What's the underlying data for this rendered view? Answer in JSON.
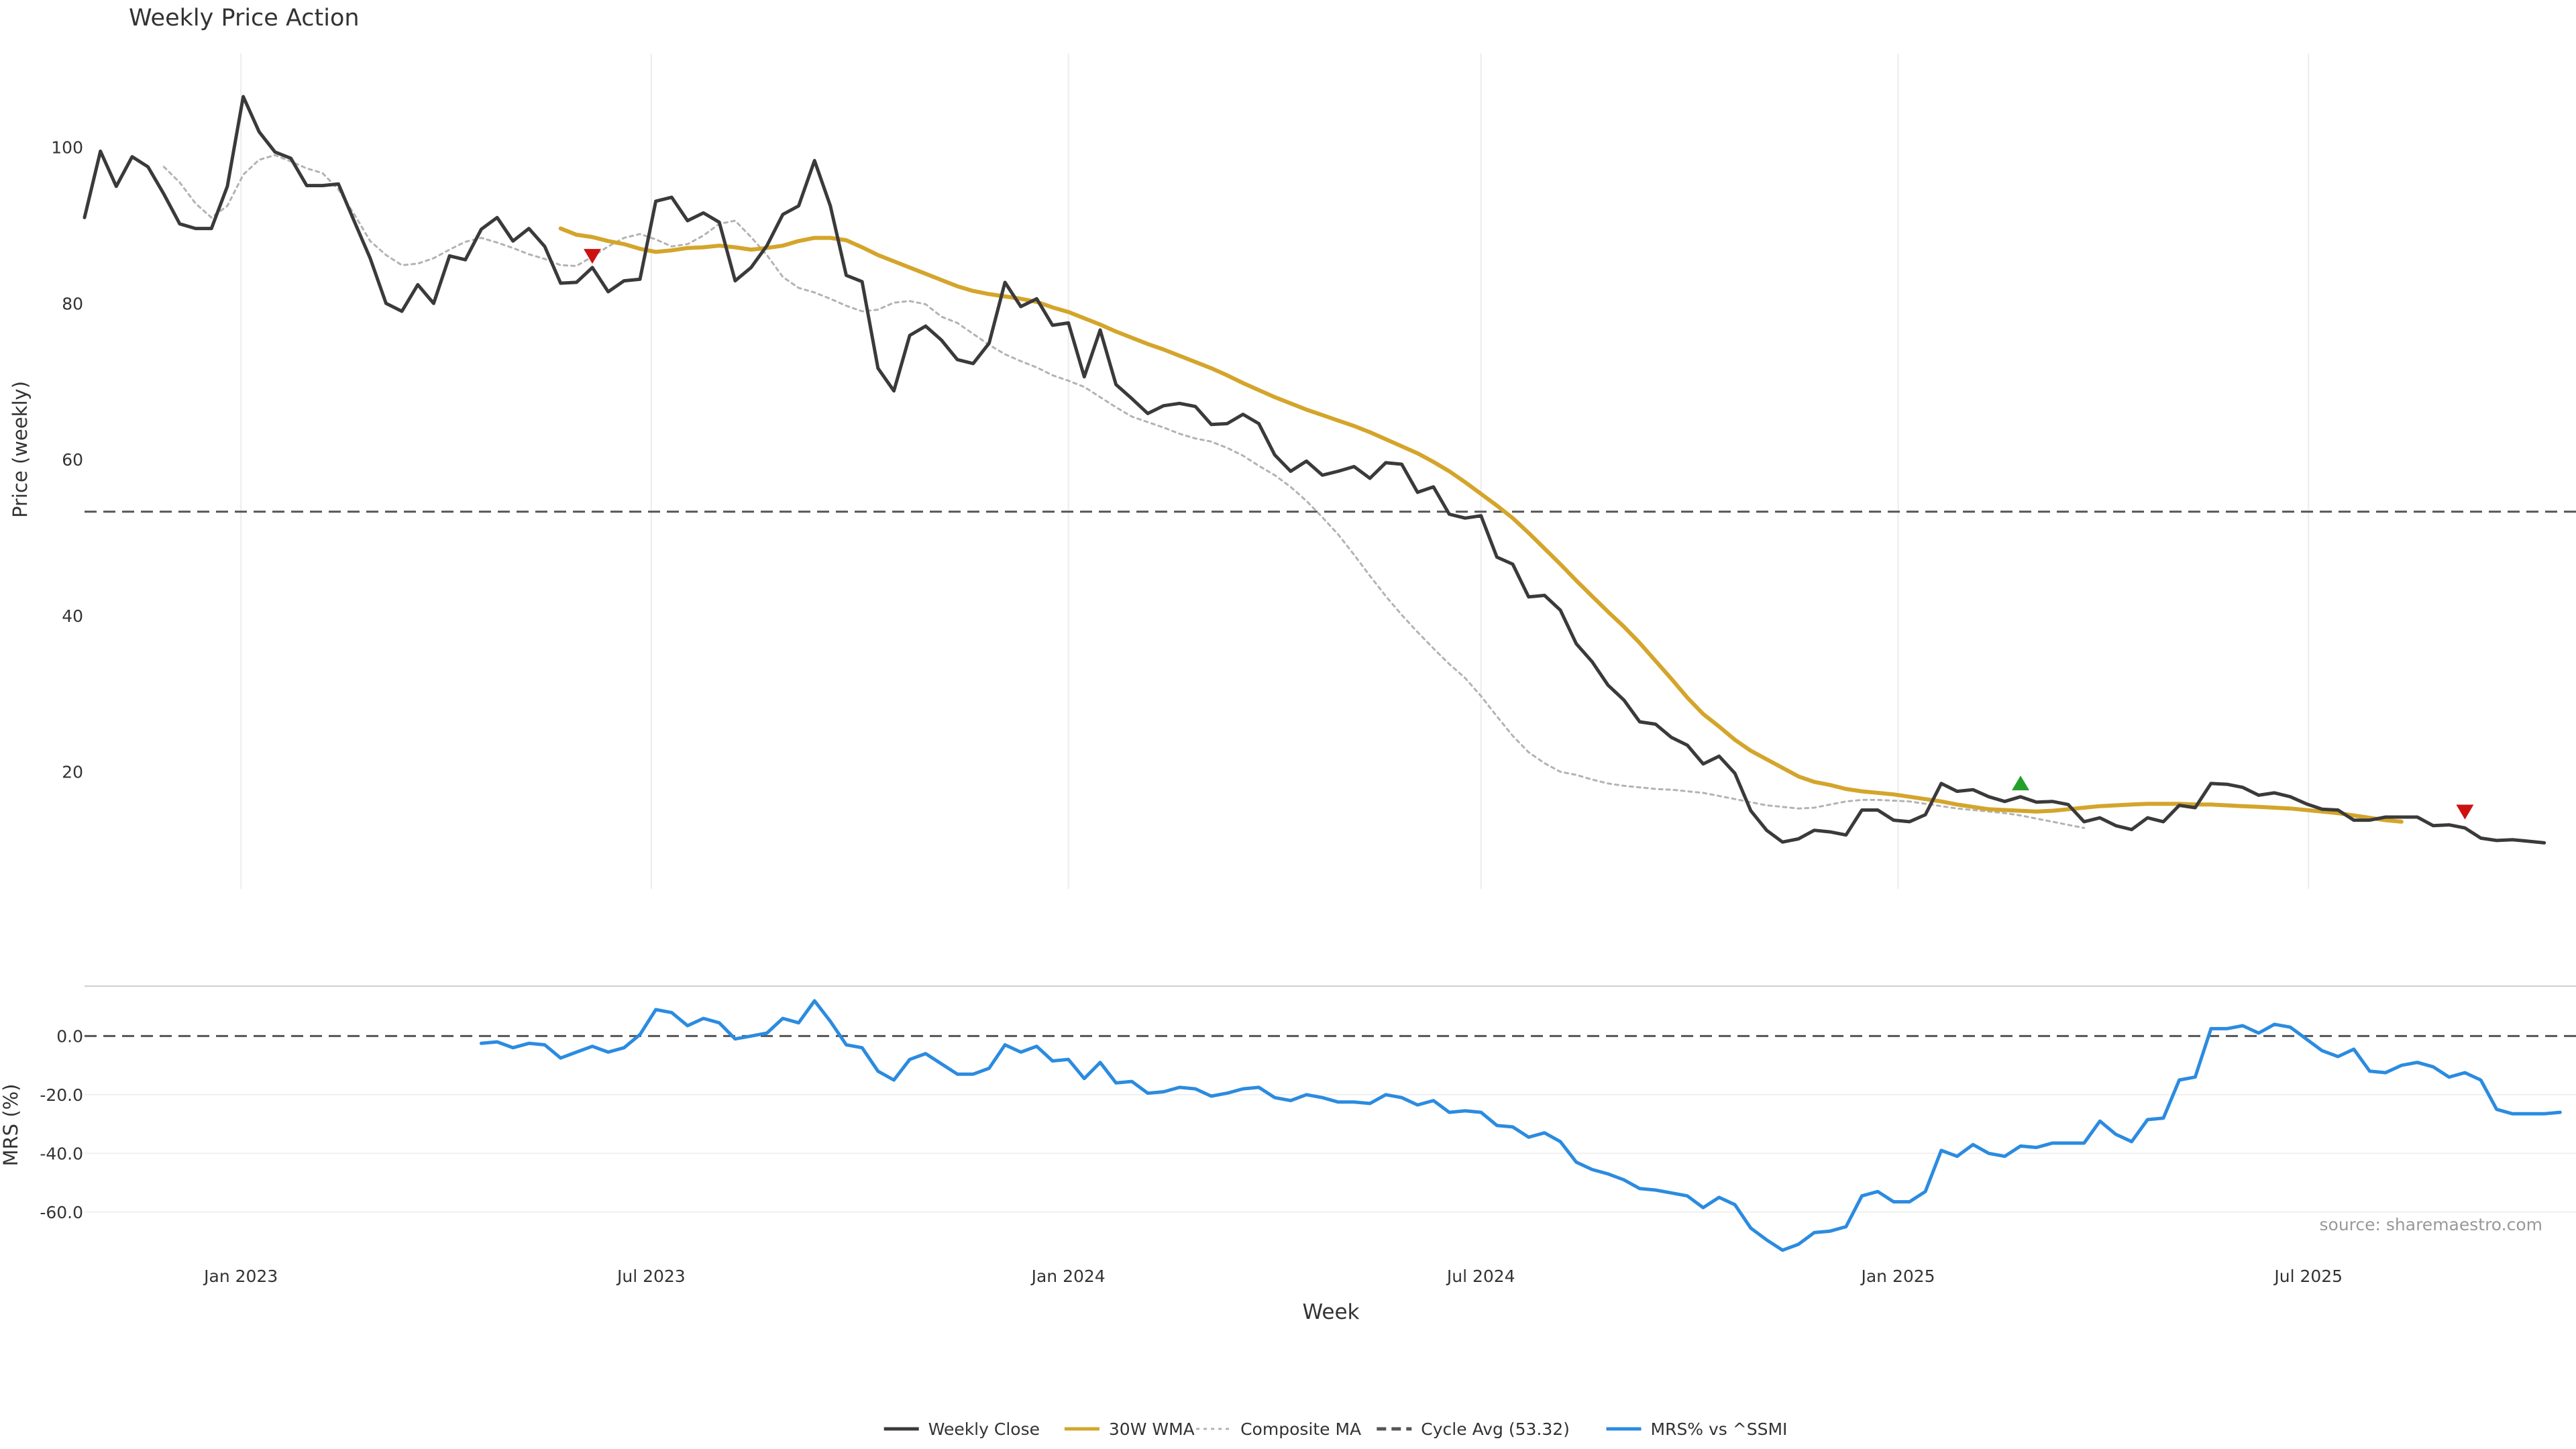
{
  "chart_data": [
    {
      "type": "line",
      "title": "Weekly Price Action",
      "ylabel": "Price (weekly)",
      "xlim": [
        "2022-10-24",
        "2025-10-27"
      ],
      "ylim": [
        5,
        112
      ],
      "yticks": [
        20,
        40,
        60,
        80,
        100
      ],
      "cycle_avg": 53.32,
      "grid": "vertical",
      "series": [
        {
          "name": "Weekly Close",
          "color": "#3a3a3a",
          "style": "solid",
          "start": "2022-10-24",
          "values": [
            91,
            99.5,
            95,
            98.8,
            97.5,
            94,
            90.2,
            89.6,
            89.6,
            95,
            106.5,
            102,
            99.4,
            98.6,
            95.1,
            95.1,
            95.3,
            90.5,
            85.8,
            80,
            79,
            82.4,
            80,
            86.1,
            85.6,
            89.5,
            91,
            88,
            89.6,
            87.3,
            82.6,
            82.7,
            84.6,
            81.5,
            82.9,
            83.1,
            93.1,
            93.6,
            90.6,
            91.6,
            90.4,
            82.9,
            84.6,
            87.4,
            91.4,
            92.5,
            98.3,
            92.5,
            83.6,
            82.8,
            71.7,
            68.8,
            75.9,
            77.1,
            75.3,
            72.8,
            72.3,
            74.9,
            82.7,
            79.6,
            80.6,
            77.2,
            77.5,
            70.6,
            76.6,
            69.6,
            67.8,
            65.9,
            66.9,
            67.2,
            66.8,
            64.5,
            64.6,
            65.8,
            64.6,
            60.6,
            58.5,
            59.8,
            58,
            58.5,
            59.1,
            57.6,
            59.6,
            59.4,
            55.8,
            56.5,
            53,
            52.5,
            52.8,
            47.5,
            46.6,
            42.4,
            42.6,
            40.7,
            36.4,
            34.1,
            31.1,
            29.2,
            26.4,
            26.1,
            24.4,
            23.4,
            21,
            22,
            19.8,
            15,
            12.5,
            11,
            11.4,
            12.5,
            12.3,
            11.9,
            15.1,
            15.1,
            13.8,
            13.6,
            14.5,
            18.5,
            17.5,
            17.7,
            16.8,
            16.2,
            16.8,
            16.1,
            16.2,
            15.8,
            13.6,
            14.1,
            13.1,
            12.6,
            14.1,
            13.6,
            15.7,
            15.4,
            18.5,
            18.4,
            18,
            17,
            17.3,
            16.8,
            15.9,
            15.2,
            15.1,
            13.8,
            13.8,
            14.2,
            14.2,
            14.2,
            13.1,
            13.2,
            12.8,
            11.5,
            11.2,
            11.3,
            11.1,
            10.9
          ]
        },
        {
          "name": "30W WMA",
          "color": "#d4a52b",
          "style": "solid",
          "start": "2023-05-22",
          "values": [
            89.6,
            88.8,
            88.5,
            88,
            87.6,
            87,
            86.6,
            86.8,
            87.1,
            87.2,
            87.4,
            87.2,
            86.9,
            87.1,
            87.4,
            88,
            88.4,
            88.4,
            88.1,
            87.2,
            86.2,
            85.4,
            84.6,
            83.8,
            83,
            82.2,
            81.6,
            81.2,
            80.9,
            80.6,
            80.2,
            79.5,
            78.9,
            78.1,
            77.3,
            76.4,
            75.6,
            74.8,
            74.1,
            73.3,
            72.5,
            71.7,
            70.8,
            69.8,
            68.9,
            68,
            67.2,
            66.4,
            65.7,
            65,
            64.3,
            63.5,
            62.6,
            61.7,
            60.8,
            59.7,
            58.5,
            57.1,
            55.6,
            54.1,
            52.5,
            50.6,
            48.6,
            46.6,
            44.5,
            42.5,
            40.5,
            38.6,
            36.5,
            34.2,
            31.9,
            29.5,
            27.4,
            25.8,
            24.1,
            22.7,
            21.6,
            20.5,
            19.4,
            18.7,
            18.3,
            17.8,
            17.5,
            17.3,
            17.1,
            16.8,
            16.5,
            16.2,
            15.8,
            15.5,
            15.2,
            15.1,
            15,
            14.9,
            15,
            15.2,
            15.4,
            15.6,
            15.7,
            15.8,
            15.9,
            15.9,
            15.9,
            15.8,
            15.8,
            15.7,
            15.6,
            15.5,
            15.4,
            15.3,
            15.1,
            14.9,
            14.7,
            14.4,
            14.1,
            13.8,
            13.6
          ]
        },
        {
          "name": "Composite MA",
          "color": "#b3b3b3",
          "style": "dotted",
          "start": "2022-11-28",
          "values": [
            97.5,
            95.5,
            92.8,
            91,
            92.5,
            96.5,
            98.4,
            99,
            98.2,
            97.3,
            96.7,
            94.6,
            91.4,
            88,
            86.2,
            84.9,
            85.1,
            85.8,
            86.9,
            87.9,
            88.4,
            87.8,
            87.1,
            86.3,
            85.7,
            84.9,
            84.8,
            86,
            87.3,
            88.4,
            88.9,
            88.2,
            87.3,
            87.6,
            88.7,
            90.2,
            90.6,
            88.5,
            86.2,
            83.4,
            82,
            81.4,
            80.6,
            79.7,
            79,
            79.2,
            80.1,
            80.3,
            79.9,
            78.3,
            77.5,
            76.1,
            74.7,
            73.5,
            72.6,
            71.8,
            70.8,
            70.1,
            69.3,
            68,
            66.7,
            65.5,
            64.8,
            64.1,
            63.3,
            62.7,
            62.3,
            61.5,
            60.5,
            59.2,
            58,
            56.5,
            54.7,
            52.6,
            50.4,
            47.8,
            45.1,
            42.5,
            40.1,
            37.9,
            35.8,
            33.8,
            32,
            29.7,
            27.1,
            24.6,
            22.5,
            21.1,
            20,
            19.6,
            19,
            18.5,
            18.2,
            18,
            17.8,
            17.7,
            17.5,
            17.3,
            16.9,
            16.5,
            16.1,
            15.7,
            15.5,
            15.3,
            15.4,
            15.8,
            16.2,
            16.4,
            16.4,
            16.3,
            16.2,
            15.9,
            15.6,
            15.3,
            15.1,
            14.9,
            14.7,
            14.4,
            14,
            13.6,
            13.2,
            12.8
          ]
        }
      ],
      "markers": [
        {
          "date": "2023-06-05",
          "value": 86.2,
          "shape": "triangle-down",
          "color": "#cc1111"
        },
        {
          "date": "2025-02-24",
          "value": 18.4,
          "shape": "triangle-up",
          "color": "#22a02a"
        },
        {
          "date": "2025-09-08",
          "value": 15.0,
          "shape": "triangle-down",
          "color": "#cc1111"
        }
      ]
    },
    {
      "type": "line",
      "ylabel": "MRS (%)",
      "xlabel": "Week",
      "ylim": [
        -74,
        17
      ],
      "yticks": [
        0.0,
        -20.0,
        -40.0,
        -60.0
      ],
      "ytick_labels": [
        "0.0",
        "-20.0",
        "-40.0",
        "-60.0"
      ],
      "zero_line": 0,
      "xticks": [
        {
          "date": "2023-01-01",
          "label": "Jan 2023"
        },
        {
          "date": "2023-07-01",
          "label": "Jul 2023"
        },
        {
          "date": "2024-01-01",
          "label": "Jan 2024"
        },
        {
          "date": "2024-07-01",
          "label": "Jul 2024"
        },
        {
          "date": "2025-01-01",
          "label": "Jan 2025"
        },
        {
          "date": "2025-07-01",
          "label": "Jul 2025"
        }
      ],
      "series": [
        {
          "name": "MRS% vs ^SSMI",
          "color": "#2b8be0",
          "style": "solid",
          "start": "2023-04-17",
          "values": [
            -2.5,
            -2,
            -4,
            -2.5,
            -3,
            -7.5,
            -5.5,
            -3.5,
            -5.5,
            -4,
            0.5,
            9,
            8,
            3.5,
            6,
            4.5,
            -1,
            0,
            1,
            6,
            4.5,
            12,
            5,
            -3,
            -4,
            -12,
            -15,
            -8,
            -6,
            -9.5,
            -13,
            -13,
            -11,
            -3,
            -5.5,
            -3.5,
            -8.5,
            -8,
            -14.5,
            -9,
            -16,
            -15.5,
            -19.5,
            -19,
            -17.5,
            -18,
            -20.5,
            -19.5,
            -18,
            -17.5,
            -21,
            -22,
            -20,
            -21,
            -22.5,
            -22.5,
            -23,
            -20,
            -21,
            -23.5,
            -22,
            -26,
            -25.5,
            -26,
            -30.5,
            -31,
            -34.5,
            -33,
            -36,
            -43,
            -45.5,
            -47,
            -49,
            -52,
            -52.5,
            -53.5,
            -54.5,
            -58.5,
            -55,
            -57.5,
            -65.5,
            -69.5,
            -73,
            -71,
            -67,
            -66.5,
            -65,
            -54.5,
            -53,
            -56.5,
            -56.5,
            -53,
            -39,
            -41,
            -37,
            -40,
            -41,
            -37.5,
            -38,
            -36.5,
            -36.5,
            -36.5,
            -29,
            -33.5,
            -36,
            -28.5,
            -28,
            -15,
            -14,
            2.5,
            2.5,
            3.5,
            1,
            4,
            3,
            -1,
            -5,
            -7,
            -4.5,
            -12,
            -12.5,
            -10,
            -9,
            -10.5,
            -14,
            -12.5,
            -15,
            -25,
            -26.5,
            -26.5,
            -26.5,
            -26
          ]
        }
      ]
    }
  ],
  "watermark": "source: sharemaestro.com",
  "legend": {
    "placement": "bottom-center",
    "items": [
      {
        "label": "Weekly Close",
        "color": "#3a3a3a",
        "style": "solid"
      },
      {
        "label": "30W WMA",
        "color": "#d4a52b",
        "style": "solid"
      },
      {
        "label": "Composite MA",
        "color": "#b3b3b3",
        "style": "dotted"
      },
      {
        "label": "Cycle Avg (53.32)",
        "color": "#555555",
        "style": "dashed"
      },
      {
        "label": "MRS% vs ^SSMI",
        "color": "#2b8be0",
        "style": "solid"
      }
    ]
  }
}
